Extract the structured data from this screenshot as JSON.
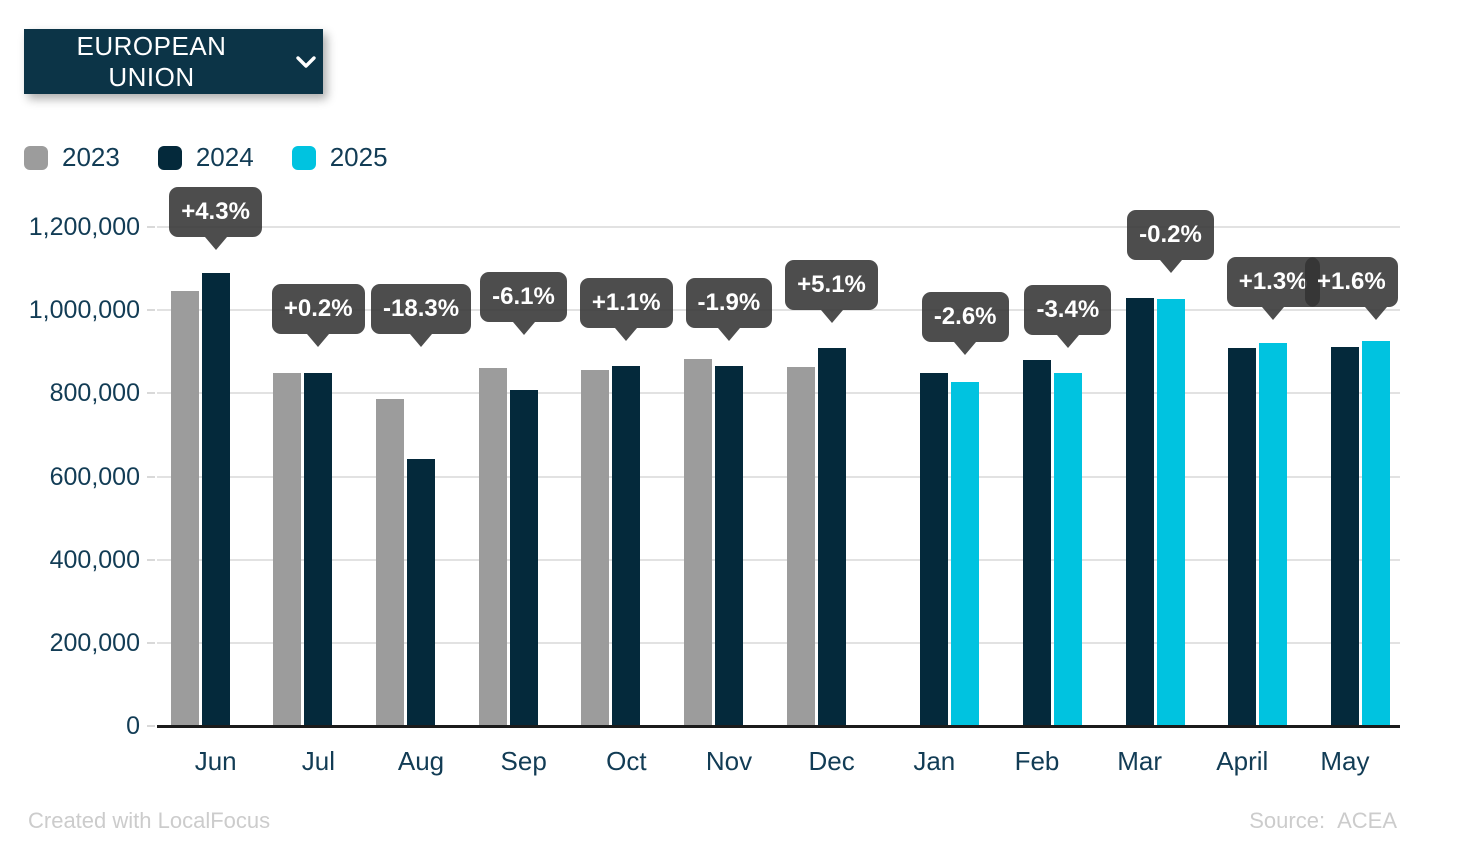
{
  "header": {
    "region_selector": {
      "label": "EUROPEAN UNION",
      "icon": "chevron-down-icon"
    }
  },
  "legend": {
    "items": [
      {
        "label": "2023",
        "color": "#9c9c9c"
      },
      {
        "label": "2024",
        "color": "#04293b"
      },
      {
        "label": "2025",
        "color": "#00c3e0"
      }
    ]
  },
  "chart_data": {
    "type": "bar",
    "title": "",
    "categories": [
      "Jun",
      "Jul",
      "Aug",
      "Sep",
      "Oct",
      "Nov",
      "Dec",
      "Jan",
      "Feb",
      "Mar",
      "April",
      "May"
    ],
    "series": [
      {
        "name": "2023",
        "color": "#9c9c9c",
        "values": [
          1045000,
          848000,
          787000,
          860000,
          856000,
          882000,
          864000,
          null,
          null,
          null,
          null,
          null
        ]
      },
      {
        "name": "2024",
        "color": "#04293b",
        "values": [
          1090000,
          850000,
          643000,
          808000,
          866000,
          865000,
          908000,
          850000,
          880000,
          1030000,
          910000,
          911000
        ]
      },
      {
        "name": "2025",
        "color": "#00c3e0",
        "values": [
          null,
          null,
          null,
          null,
          null,
          null,
          null,
          828000,
          850000,
          1028000,
          922000,
          926000
        ]
      }
    ],
    "change_labels": [
      "+4.3%",
      "+0.2%",
      "-18.3%",
      "-6.1%",
      "+1.1%",
      "-1.9%",
      "+5.1%",
      "-2.6%",
      "-3.4%",
      "-0.2%",
      "+1.3%",
      "+1.6%"
    ],
    "ylim": [
      0,
      1200000
    ],
    "ytick_values": [
      0,
      200000,
      400000,
      600000,
      800000,
      1000000,
      1200000
    ],
    "ytick_labels": [
      "0",
      "200,000",
      "400,000",
      "600,000",
      "800,000",
      "1,000,000",
      "1,200,000"
    ],
    "grid": true,
    "legend_position": "top-left"
  },
  "colors": {
    "accent_dark": "#04293b",
    "accent_cyan": "#00c3e0",
    "accent_gray": "#9c9c9c",
    "button_bg": "#0c3447",
    "tooltip_bg": "rgba(51,51,51,0.87)",
    "text": "#123c55",
    "gridline": "#e2e2e2",
    "axis_line": "#1b1b1b",
    "footer_text": "#cccccc"
  },
  "footer": {
    "left": "Created with LocalFocus",
    "source_label": "Source:",
    "source_value": "ACEA"
  }
}
